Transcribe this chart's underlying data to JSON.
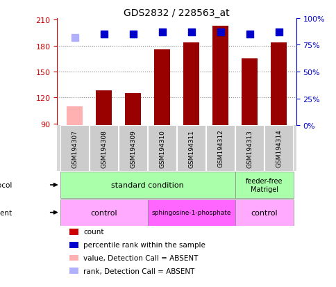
{
  "title": "GDS2832 / 228563_at",
  "samples": [
    "GSM194307",
    "GSM194308",
    "GSM194309",
    "GSM194310",
    "GSM194311",
    "GSM194312",
    "GSM194313",
    "GSM194314"
  ],
  "counts": [
    110,
    128,
    125,
    176,
    184,
    203,
    165,
    184
  ],
  "percentile_ranks": [
    82,
    85,
    85,
    87,
    87,
    87,
    85,
    87
  ],
  "absent_flags": [
    true,
    false,
    false,
    false,
    false,
    false,
    false,
    false
  ],
  "ylim_left": [
    88,
    212
  ],
  "ylim_right": [
    0,
    100
  ],
  "yticks_left": [
    90,
    120,
    150,
    180,
    210
  ],
  "yticks_right": [
    0,
    25,
    50,
    75,
    100
  ],
  "bar_color_normal": "#990000",
  "bar_color_absent": "#ffb0b0",
  "dot_color_normal": "#0000cc",
  "dot_color_absent": "#b0b0ff",
  "grid_color": "#000000",
  "bg_color": "#ffffff",
  "left_label_color": "#cc0000",
  "right_label_color": "#0000cc",
  "bar_width": 0.55,
  "dot_size": 55,
  "growth_std_color": "#aaffaa",
  "growth_ff_color": "#aaffaa",
  "agent_ctrl_color": "#ffaaff",
  "agent_sph_color": "#ff66ff",
  "legend_items": [
    {
      "label": "count",
      "color": "#cc0000"
    },
    {
      "label": "percentile rank within the sample",
      "color": "#0000cc"
    },
    {
      "label": "value, Detection Call = ABSENT",
      "color": "#ffb0b0"
    },
    {
      "label": "rank, Detection Call = ABSENT",
      "color": "#b0b0ff"
    }
  ],
  "sample_box_color": "#cccccc",
  "grid_lines_at": [
    120,
    150,
    180
  ]
}
